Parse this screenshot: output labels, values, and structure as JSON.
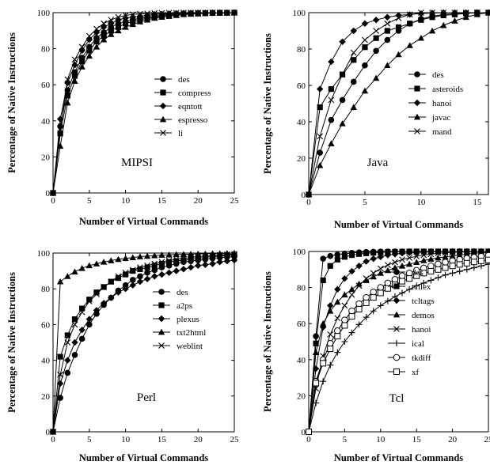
{
  "chart_data": [
    {
      "type": "line",
      "title": "MIPSI",
      "xlabel": "Number of Virtual Commands",
      "ylabel": "Percentage of Native Instructions",
      "xlim": [
        0,
        25
      ],
      "ylim": [
        0,
        100
      ],
      "xticks": [
        0,
        5,
        10,
        15,
        20,
        25
      ],
      "yticks": [
        0,
        20,
        40,
        60,
        80,
        100
      ],
      "x": [
        0,
        1,
        2,
        3,
        4,
        5,
        6,
        7,
        8,
        9,
        10,
        11,
        12,
        13,
        14,
        15,
        16,
        17,
        18,
        19,
        20,
        21,
        22,
        23,
        24,
        25
      ],
      "legend_position": "right",
      "series": [
        {
          "name": "des",
          "marker": "circle",
          "values": [
            0,
            37,
            57,
            67,
            75,
            81,
            86,
            89,
            92,
            94,
            95,
            96,
            97,
            97.5,
            98,
            98.5,
            99,
            99,
            99.3,
            99.5,
            99.6,
            99.7,
            99.8,
            99.9,
            99.9,
            100
          ]
        },
        {
          "name": "compress",
          "marker": "square",
          "values": [
            0,
            33,
            54,
            65,
            73,
            79,
            84,
            87,
            90,
            92,
            94,
            95,
            96,
            97,
            97.5,
            98,
            98.5,
            99,
            99.2,
            99.4,
            99.6,
            99.7,
            99.8,
            99.9,
            99.9,
            100
          ]
        },
        {
          "name": "eqntott",
          "marker": "diamond",
          "values": [
            0,
            41,
            61,
            71,
            79,
            85,
            89,
            92,
            94,
            96,
            97,
            97.5,
            98,
            98.5,
            99,
            99.2,
            99.4,
            99.6,
            99.7,
            99.8,
            99.9,
            99.9,
            100,
            100,
            100,
            100
          ]
        },
        {
          "name": "espresso",
          "marker": "triangle",
          "values": [
            0,
            26,
            50,
            62,
            70,
            76,
            81,
            85,
            88,
            90,
            92,
            93.5,
            95,
            96,
            97,
            97.5,
            98,
            98.5,
            99,
            99.2,
            99.4,
            99.6,
            99.7,
            99.8,
            99.9,
            100
          ]
        },
        {
          "name": "li",
          "marker": "x",
          "values": [
            0,
            35,
            63,
            74,
            81,
            87,
            91,
            94,
            96,
            97.5,
            98.5,
            99,
            99.3,
            99.5,
            99.7,
            99.8,
            99.9,
            99.9,
            100,
            100,
            100,
            100,
            100,
            100,
            100,
            100
          ]
        }
      ]
    },
    {
      "type": "line",
      "title": "Java",
      "xlabel": "Number of Virtual Commands",
      "ylabel": "Percentage of Native Instructions",
      "xlim": [
        0,
        16
      ],
      "ylim": [
        0,
        100
      ],
      "xticks": [
        0,
        5,
        10,
        15
      ],
      "yticks": [
        0,
        20,
        40,
        60,
        80,
        100
      ],
      "x": [
        0,
        1,
        2,
        3,
        4,
        5,
        6,
        7,
        8,
        9,
        10,
        11,
        12,
        13,
        14,
        15,
        16
      ],
      "legend_position": "right",
      "series": [
        {
          "name": "des",
          "marker": "circle",
          "values": [
            0,
            23,
            41,
            52,
            62,
            71,
            79,
            85,
            90,
            94,
            96.5,
            98,
            99,
            99.5,
            99.8,
            100,
            100
          ]
        },
        {
          "name": "asteroids",
          "marker": "square",
          "values": [
            0,
            48,
            58,
            66,
            74,
            81,
            86,
            90,
            92,
            94,
            96,
            97.5,
            98.5,
            99,
            99.5,
            100,
            100
          ]
        },
        {
          "name": "hanoi",
          "marker": "diamond",
          "values": [
            0,
            58,
            73,
            84,
            90,
            94,
            96,
            97.5,
            98.5,
            99,
            99.5,
            99.8,
            100,
            100,
            100,
            100,
            100
          ]
        },
        {
          "name": "javac",
          "marker": "triangle",
          "values": [
            0,
            16,
            28,
            39,
            48,
            57,
            64,
            71,
            77,
            82,
            86,
            90,
            93,
            95.5,
            97.5,
            99,
            100
          ]
        },
        {
          "name": "mand",
          "marker": "x",
          "values": [
            0,
            32,
            52,
            66,
            78,
            85,
            90,
            94,
            97,
            99,
            100,
            100,
            100,
            100,
            100,
            100,
            100
          ]
        }
      ]
    },
    {
      "type": "line",
      "title": "Perl",
      "xlabel": "Number of Virtual Commands",
      "ylabel": "Percentage of Native Instructions",
      "xlim": [
        0,
        25
      ],
      "ylim": [
        0,
        100
      ],
      "xticks": [
        0,
        5,
        10,
        15,
        20,
        25
      ],
      "yticks": [
        0,
        20,
        40,
        60,
        80,
        100
      ],
      "x": [
        0,
        1,
        2,
        3,
        4,
        5,
        6,
        7,
        8,
        9,
        10,
        11,
        12,
        13,
        14,
        15,
        16,
        17,
        18,
        19,
        20,
        21,
        22,
        23,
        24,
        25
      ],
      "legend_position": "right",
      "series": [
        {
          "name": "des",
          "marker": "circle",
          "values": [
            0,
            19,
            33,
            43,
            52,
            60,
            66,
            71,
            75,
            79,
            82,
            85,
            87,
            89,
            90.5,
            92,
            93,
            94,
            95,
            95.5,
            96,
            96.5,
            97,
            97.5,
            97.8,
            98
          ]
        },
        {
          "name": "a2ps",
          "marker": "square",
          "values": [
            0,
            42,
            54,
            63,
            69,
            74,
            78,
            81,
            84,
            86,
            88,
            90,
            91,
            92,
            93,
            94,
            95,
            95.5,
            96,
            96.5,
            97,
            97.5,
            98,
            98.3,
            98.6,
            99
          ]
        },
        {
          "name": "plexus",
          "marker": "diamond",
          "values": [
            0,
            27,
            40,
            50,
            57,
            63,
            68,
            72,
            75,
            78,
            80,
            82,
            84,
            85.5,
            87,
            88,
            89,
            90,
            91,
            92,
            93,
            93.5,
            94,
            95,
            95.5,
            96
          ]
        },
        {
          "name": "txt2html",
          "marker": "triangle",
          "values": [
            0,
            84,
            87,
            89.5,
            91.5,
            93,
            94,
            95,
            95.8,
            96.5,
            97,
            97.5,
            98,
            98.3,
            98.6,
            98.9,
            99,
            99.2,
            99.3,
            99.4,
            99.5,
            99.6,
            99.7,
            99.8,
            99.9,
            100
          ]
        },
        {
          "name": "weblint",
          "marker": "x",
          "values": [
            0,
            32,
            50,
            60,
            67,
            73,
            77,
            81,
            84,
            87,
            89,
            90.5,
            92,
            93,
            94,
            95,
            95.8,
            96.5,
            97,
            97.5,
            98,
            98.3,
            98.6,
            98.9,
            99.2,
            99.5
          ]
        }
      ]
    },
    {
      "type": "line",
      "title": "Tcl",
      "xlabel": "Number of Virtual Commands",
      "ylabel": "Percentage of Native Instructions",
      "xlim": [
        0,
        25
      ],
      "ylim": [
        0,
        100
      ],
      "xticks": [
        0,
        5,
        10,
        15,
        20,
        25
      ],
      "yticks": [
        0,
        20,
        40,
        60,
        80,
        100
      ],
      "x": [
        0,
        1,
        2,
        3,
        4,
        5,
        6,
        7,
        8,
        9,
        10,
        11,
        12,
        13,
        14,
        15,
        16,
        17,
        18,
        19,
        20,
        21,
        22,
        23,
        24,
        25
      ],
      "legend_position": "right",
      "series": [
        {
          "name": "des",
          "marker": "circle",
          "values": [
            0,
            53,
            96,
            97.5,
            98.3,
            98.8,
            99.2,
            99.5,
            99.7,
            99.8,
            99.9,
            100,
            100,
            100,
            100,
            100,
            100,
            100,
            100,
            100,
            100,
            100,
            100,
            100,
            100,
            100
          ]
        },
        {
          "name": "tcllex",
          "marker": "square",
          "values": [
            0,
            49,
            84,
            92,
            95.5,
            97,
            98,
            98.6,
            99,
            99.3,
            99.5,
            99.7,
            99.8,
            99.9,
            100,
            100,
            100,
            100,
            100,
            100,
            100,
            100,
            100,
            100,
            100,
            100
          ]
        },
        {
          "name": "tcltags",
          "marker": "diamond",
          "values": [
            0,
            35,
            58,
            70,
            79,
            85,
            89,
            92,
            94.5,
            96,
            97,
            98,
            98.5,
            99,
            99.3,
            99.5,
            99.7,
            99.8,
            99.9,
            100,
            100,
            100,
            100,
            100,
            100,
            100
          ]
        },
        {
          "name": "demos",
          "marker": "triangle",
          "values": [
            0,
            44,
            60,
            67,
            72,
            76,
            79,
            82,
            84,
            86,
            88,
            89.5,
            91,
            92,
            93,
            94,
            95,
            95.8,
            96.5,
            97,
            97.5,
            98,
            98.5,
            99,
            99.3,
            99.5
          ]
        },
        {
          "name": "hanoi",
          "marker": "x",
          "values": [
            0,
            24,
            42,
            54,
            63,
            70,
            76,
            81,
            85,
            88,
            90.5,
            92.5,
            94,
            95.5,
            96.5,
            97.3,
            98,
            98.5,
            99,
            99.3,
            99.5,
            99.7,
            99.8,
            99.9,
            100,
            100
          ]
        },
        {
          "name": "ical",
          "marker": "plus",
          "values": [
            0,
            16,
            28,
            37,
            44,
            50,
            55,
            59.5,
            63.5,
            67,
            70,
            72.5,
            75,
            77,
            79,
            81,
            82.5,
            84,
            85.5,
            87,
            88,
            89,
            90,
            91,
            92,
            93
          ]
        },
        {
          "name": "tkdiff",
          "marker": "open-circle",
          "values": [
            0,
            28,
            40,
            49,
            56,
            62,
            67,
            71,
            74.5,
            77.5,
            80,
            82.5,
            84.5,
            86.5,
            88,
            89.5,
            90.8,
            92,
            93,
            94,
            94.8,
            95.5,
            96.2,
            96.8,
            97.3,
            97.8
          ]
        },
        {
          "name": "xf",
          "marker": "open-square",
          "values": [
            0,
            27,
            38,
            46,
            53,
            59,
            64,
            68,
            71.5,
            74.5,
            77,
            79.5,
            81.5,
            83.5,
            85,
            86.5,
            88,
            89,
            90,
            91,
            92,
            92.8,
            93.5,
            94.2,
            94.8,
            95.3
          ]
        }
      ]
    }
  ]
}
